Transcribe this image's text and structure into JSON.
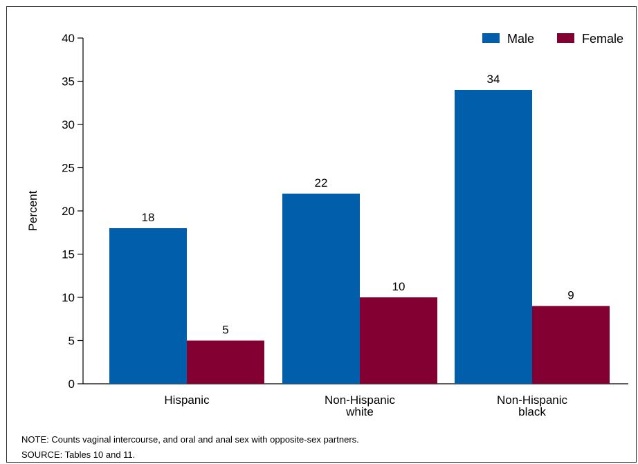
{
  "chart_data": {
    "type": "bar",
    "title": "",
    "xlabel": "",
    "ylabel": "Percent",
    "ylim": [
      0,
      40
    ],
    "yticks": [
      0,
      5,
      10,
      15,
      20,
      25,
      30,
      35,
      40
    ],
    "grid": false,
    "legend_position": "top-right",
    "categories": [
      [
        "Hispanic"
      ],
      [
        "Non-Hispanic",
        "white"
      ],
      [
        "Non-Hispanic",
        "black"
      ]
    ],
    "series": [
      {
        "name": "Male",
        "color": "#005EAA",
        "values": [
          18,
          22,
          34
        ]
      },
      {
        "name": "Female",
        "color": "#820032",
        "values": [
          5,
          10,
          9
        ]
      }
    ]
  },
  "note": "NOTE: Counts vaginal intercourse, and oral and anal sex with opposite-sex partners.",
  "source": "SOURCE: Tables 10 and 11."
}
